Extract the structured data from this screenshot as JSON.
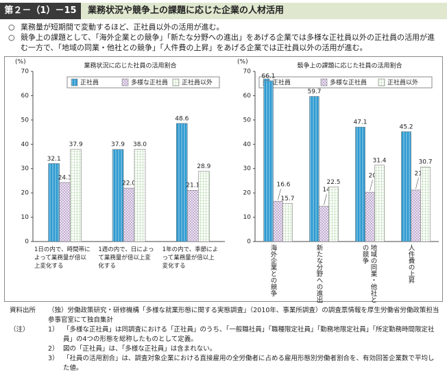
{
  "header": {
    "figure_no": "第２－（1）－15図",
    "title": "業務状況や競争上の課題に応じた企業の人材活用"
  },
  "bullets": [
    {
      "mark": "○",
      "text": "業務量が短期間で変動するほど、正社員以外の活用が進む。"
    },
    {
      "mark": "○",
      "text": "競争上の課題として、「海外企業との競争」「新たな分野への進出」をあげる企業では多様な正社員以外の正社員の活用が進む一方で、「地域の同業・他社との競争」「人件費の上昇」をあげる企業では正社員以外の活用が進む。"
    }
  ],
  "chart_data": [
    {
      "type": "bar",
      "title": "業務状況に応じた社員の活用割合",
      "y_label": "(%)",
      "categories": [
        "1日の内で、時間帯によって業務量が倍以上変化する",
        "1週の内で、日によって業務量が倍以上変化する",
        "1年の内で、季節によって業務量が倍以上変化する"
      ],
      "series": [
        {
          "name": "正社員",
          "color": "#2e9ad0",
          "pattern": "stripes",
          "values": [
            32.1,
            37.9,
            48.6
          ],
          "value_labels": [
            "32.1",
            "37.9",
            "48.6"
          ]
        },
        {
          "name": "多様な正社員",
          "color": "#a98cc0",
          "pattern": "crosshatch",
          "values": [
            24.3,
            22.0,
            21.1
          ],
          "value_labels": [
            "24.3",
            "22.0",
            "21.1"
          ]
        },
        {
          "name": "正社員以外",
          "color": "#6fb25c",
          "pattern": "grid",
          "values": [
            37.9,
            38.0,
            28.9
          ],
          "value_labels": [
            "37.9",
            "38.0",
            "28.9"
          ]
        }
      ],
      "ylim": [
        0,
        70
      ],
      "yticks": [
        0,
        10,
        20,
        30,
        40,
        50,
        60,
        70
      ],
      "grid": false
    },
    {
      "type": "bar",
      "title": "競争上の課題に応じた社員の活用割合",
      "y_label": "(%)",
      "categories": [
        "海外企業との競争",
        "新たな分野への進出",
        "地域の同業・他社との競争",
        "人件費の上昇"
      ],
      "series": [
        {
          "name": "正社員",
          "color": "#2e9ad0",
          "pattern": "stripes",
          "values": [
            66.1,
            59.7,
            47.1,
            45.2
          ],
          "value_labels": [
            "66.1",
            "59.7",
            "47.1",
            "45.2"
          ]
        },
        {
          "name": "多様な正社員",
          "color": "#a98cc0",
          "pattern": "crosshatch",
          "values": [
            16.6,
            14.5,
            20.3,
            21.2
          ],
          "value_labels": [
            "16.6",
            "14.5",
            "20.3",
            "21.2"
          ]
        },
        {
          "name": "正社員以外",
          "color": "#6fb25c",
          "pattern": "grid",
          "values": [
            15.7,
            22.5,
            31.4,
            30.7
          ],
          "value_labels": [
            "15.7",
            "22.5",
            "31.4",
            "30.7"
          ]
        }
      ],
      "ylim": [
        0,
        70
      ],
      "yticks": [
        0,
        10,
        20,
        30,
        40,
        50,
        60,
        70
      ],
      "grid": false
    }
  ],
  "source": {
    "label": "資料出所",
    "text": "（独）労働政策研究・研修機構「多様な就業形態に関する実態調査」（2010年、事業所調査）の調査票情報を厚生労働省労働政策担当参事官室にて独自集計"
  },
  "notes": {
    "label": "（注）",
    "items": [
      {
        "num": "1）",
        "text": "「多様な正社員」は同調査における「正社員」のうち、「一般職社員」「職種限定社員」「勤務地限定社員」「所定勤務時間限定社員」の4つの形態を総称したものとして定義。"
      },
      {
        "num": "2）",
        "text": "図の「正社員」は、「多様な正社員」は含まれない。"
      },
      {
        "num": "3）",
        "text": "「社員の活用割合」は、調査対象企業における直接雇用の全労働者に占める雇用形態別労働者割合を、有効回答企業数で平均した値。"
      }
    ]
  }
}
